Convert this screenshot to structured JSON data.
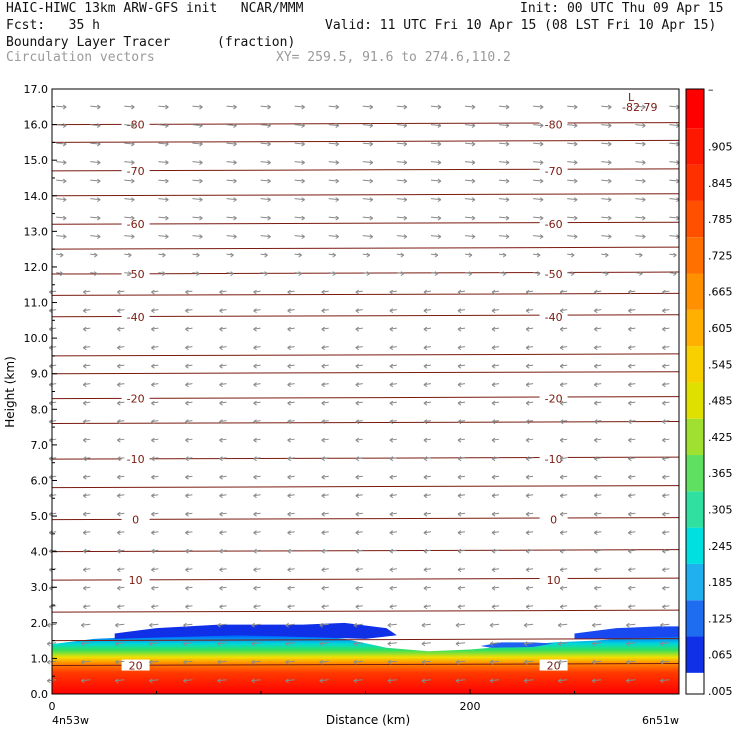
{
  "header": {
    "model": "HAIC-HIWC 13km ARW-GFS init   NCAR/MMM",
    "init": "Init: 00 UTC Thu 09 Apr 15",
    "fcst": "Fcst:   35 h",
    "valid": "Valid: 11 UTC Fri 10 Apr 15 (08 LST Fri 10 Apr 15)",
    "field": "Boundary Layer Tracer",
    "units": "(fraction)",
    "vectors": "Circulation vectors",
    "xy": "XY= 259.5, 91.6 to 274.6,110.2"
  },
  "chart_data": {
    "type": "cross-section",
    "xlabel": "Distance (km)",
    "ylabel": "Height (km)",
    "x_tick": "200",
    "x_tick_value": 200,
    "xlim": [
      0,
      300
    ],
    "ylim": [
      0,
      17
    ],
    "y_ticks": [
      "0.0",
      "1.0",
      "2.0",
      "3.0",
      "4.0",
      "5.0",
      "6.0",
      "7.0",
      "8.0",
      "9.0",
      "10.0",
      "11.0",
      "12.0",
      "13.0",
      "14.0",
      "15.0",
      "16.0",
      "17.0"
    ],
    "x_left_label": "4n53w",
    "x_right_label": "6n51w",
    "low_marker": "L",
    "low_value": "-82.79",
    "temperature_contours": [
      {
        "label": "-80",
        "height": 16.0
      },
      {
        "label": "-70",
        "height": 14.7
      },
      {
        "label": "-60",
        "height": 13.2
      },
      {
        "label": "-50",
        "height": 11.8
      },
      {
        "label": "-40",
        "height": 10.6
      },
      {
        "label": "-20",
        "height": 8.3
      },
      {
        "label": "-10",
        "height": 6.6
      },
      {
        "label": "0",
        "height": 4.9
      },
      {
        "label": "10",
        "height": 3.2
      },
      {
        "label": "20",
        "height": 0.8
      }
    ],
    "colorbar_ticks": [
      ".905",
      ".845",
      ".785",
      ".725",
      ".665",
      ".605",
      ".545",
      ".485",
      ".425",
      ".365",
      ".305",
      ".245",
      ".185",
      ".125",
      ".065",
      ".005"
    ],
    "colorbar_tick_values": [
      0.905,
      0.845,
      0.785,
      0.725,
      0.665,
      0.605,
      0.545,
      0.485,
      0.425,
      0.365,
      0.305,
      0.245,
      0.185,
      0.125,
      0.065,
      0.005
    ],
    "colorbar_top": "–"
  }
}
